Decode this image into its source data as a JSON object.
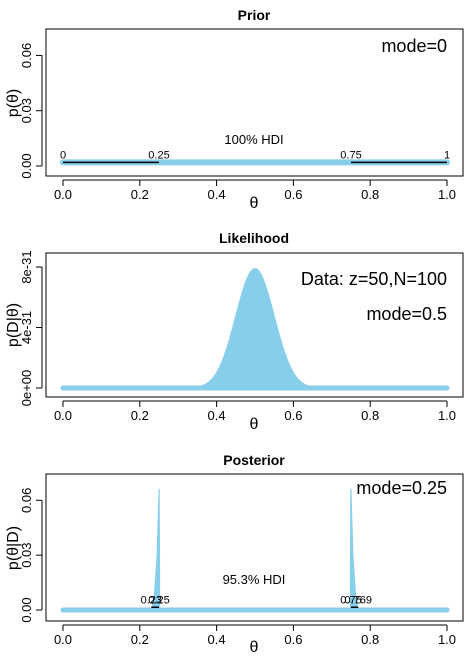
{
  "chart_data": [
    {
      "type": "area",
      "title": "Prior",
      "xlabel": "θ",
      "ylabel": "p(θ)",
      "xlim": [
        0,
        1
      ],
      "ylim": [
        0,
        0.07
      ],
      "x_ticks": [
        "0.0",
        "0.2",
        "0.4",
        "0.6",
        "0.8",
        "1.0"
      ],
      "y_ticks": [
        "0.00",
        "0.03",
        "0.06"
      ],
      "y_tick_values": [
        0,
        0.03,
        0.06
      ],
      "annotation": "mode=0",
      "hdi_label": "100% HDI",
      "hdi_segments": [
        {
          "from": 0,
          "to": 0.25,
          "from_label": "0",
          "to_label": "0.25"
        },
        {
          "from": 0.75,
          "to": 1,
          "from_label": "0.75",
          "to_label": "1"
        }
      ],
      "x": [
        0,
        0.25,
        0.5,
        0.75,
        1
      ],
      "y": [
        0.002,
        0.002,
        0.002,
        0.002,
        0.002
      ],
      "color": "#87CEEB"
    },
    {
      "type": "area",
      "title": "Likelihood",
      "xlabel": "θ",
      "ylabel": "p(D|θ)",
      "xlim": [
        0,
        1
      ],
      "ylim": [
        0,
        8.4e-31
      ],
      "x_ticks": [
        "0.0",
        "0.2",
        "0.4",
        "0.6",
        "0.8",
        "1.0"
      ],
      "y_ticks": [
        "0e+00",
        "4e-31",
        "8e-31"
      ],
      "y_tick_values": [
        0,
        4e-31,
        8e-31
      ],
      "annotation": "Data: z=50,N=100",
      "annotation2": "mode=0.5",
      "distribution": {
        "kind": "binomial-likelihood",
        "z": 50,
        "N": 100
      },
      "peak_value": 7.9e-31,
      "color": "#87CEEB"
    },
    {
      "type": "area",
      "title": "Posterior",
      "xlabel": "θ",
      "ylabel": "p(θ|D)",
      "xlim": [
        0,
        1
      ],
      "ylim": [
        0,
        0.07
      ],
      "x_ticks": [
        "0.0",
        "0.2",
        "0.4",
        "0.6",
        "0.8",
        "1.0"
      ],
      "y_ticks": [
        "0.00",
        "0.03",
        "0.06"
      ],
      "y_tick_values": [
        0,
        0.03,
        0.06
      ],
      "annotation": "mode=0.25",
      "hdi_label": "95.3% HDI",
      "hdi_segments": [
        {
          "from": 0.23,
          "to": 0.25,
          "from_label": "0.23",
          "to_label": "0.25"
        },
        {
          "from": 0.75,
          "to": 0.769,
          "from_label": "0.75",
          "to_label": "0.769"
        }
      ],
      "spikes": [
        {
          "x": [
            0.23,
            0.238,
            0.245,
            0.25,
            0.2505,
            0.252
          ],
          "y": [
            0.0,
            0.008,
            0.03,
            0.066,
            0.066,
            0.0
          ]
        },
        {
          "x": [
            0.748,
            0.7495,
            0.75,
            0.755,
            0.762,
            0.769
          ],
          "y": [
            0.0,
            0.066,
            0.066,
            0.03,
            0.008,
            0.0
          ]
        }
      ],
      "color": "#87CEEB"
    }
  ]
}
